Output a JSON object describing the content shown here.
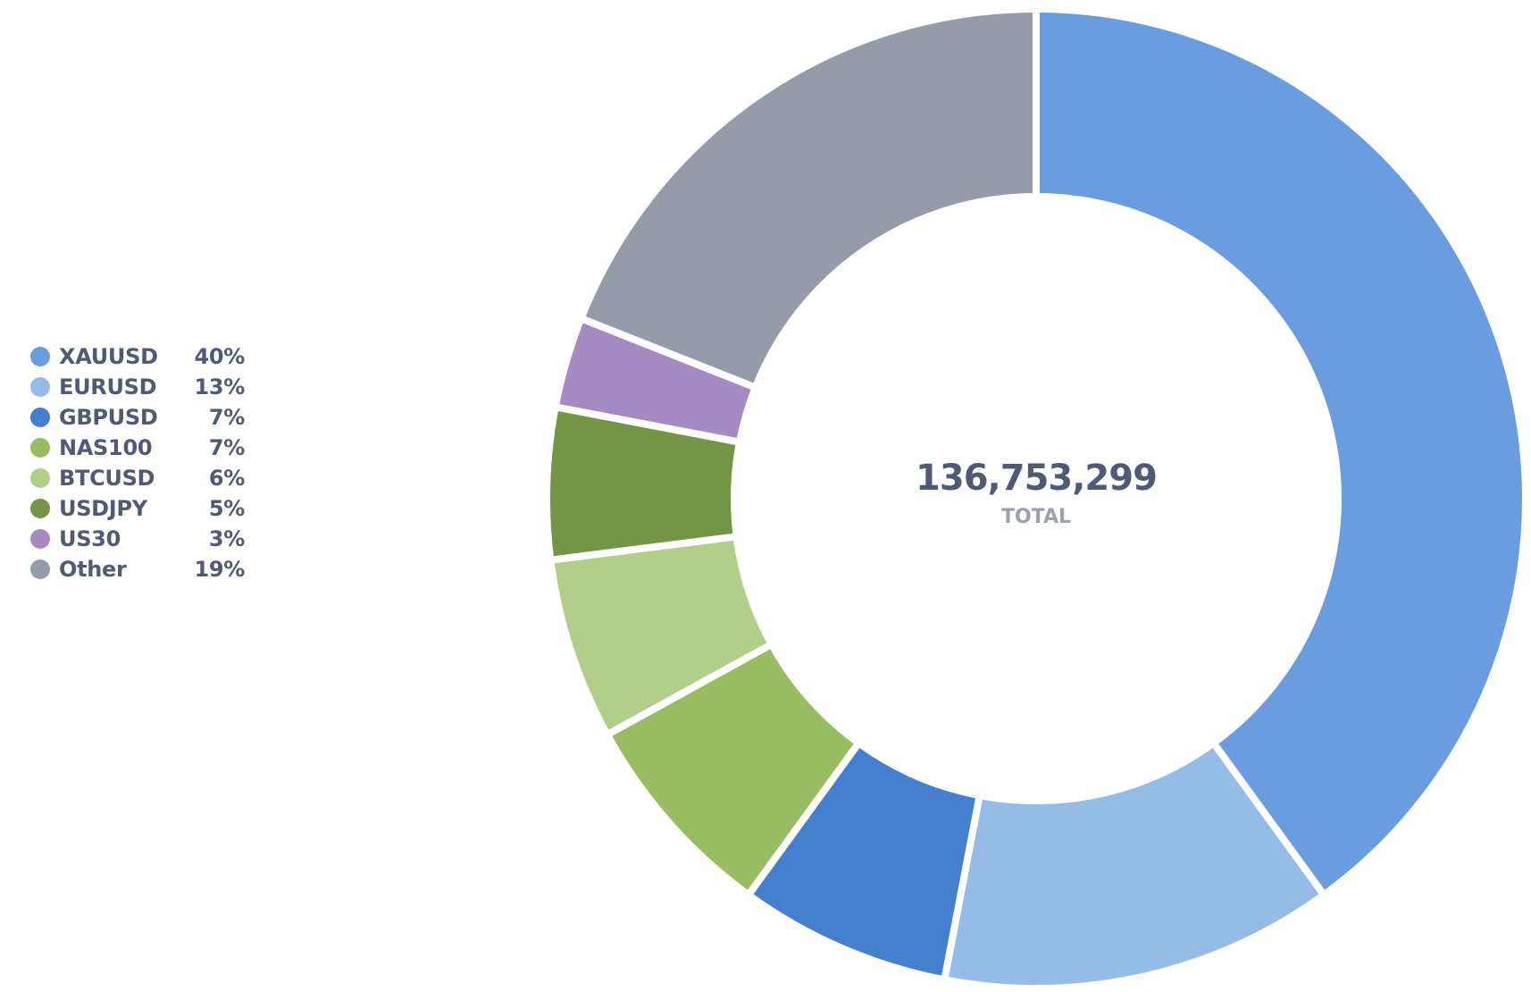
{
  "chart_data": {
    "type": "pie",
    "style": "donut",
    "center_value": "136,753,299",
    "center_label": "TOTAL",
    "legend_placement": "left",
    "start_angle": "top (12 o'clock)",
    "direction": "clockwise",
    "series": [
      {
        "name": "XAUUSD",
        "value": 40,
        "display": "40%",
        "color": "#6a9ddf"
      },
      {
        "name": "EURUSD",
        "value": 13,
        "display": "13%",
        "color": "#95bbe7"
      },
      {
        "name": "GBPUSD",
        "value": 7,
        "display": "7%",
        "color": "#4480cd"
      },
      {
        "name": "NAS100",
        "value": 7,
        "display": "7%",
        "color": "#98bd62"
      },
      {
        "name": "BTCUSD",
        "value": 6,
        "display": "6%",
        "color": "#b1cf89"
      },
      {
        "name": "USDJPY",
        "value": 5,
        "display": "5%",
        "color": "#729645"
      },
      {
        "name": "US30",
        "value": 3,
        "display": "3%",
        "color": "#a68ac2"
      },
      {
        "name": "Other",
        "value": 19,
        "display": "19%",
        "color": "#969ba9"
      }
    ]
  }
}
